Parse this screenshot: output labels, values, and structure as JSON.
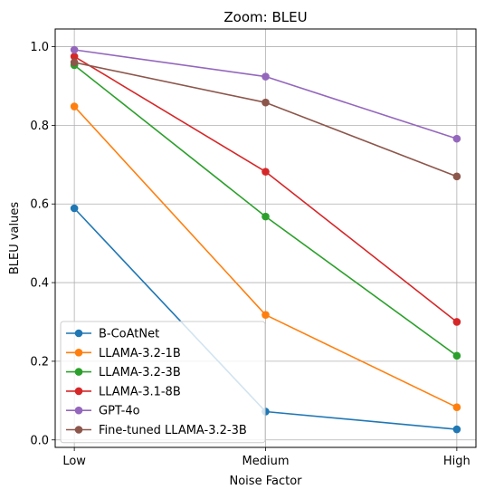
{
  "chart_data": {
    "type": "line",
    "title": "Zoom: BLEU",
    "xlabel": "Noise Factor",
    "ylabel": "BLEU values",
    "categories": [
      "Low",
      "Medium",
      "High"
    ],
    "ylim": [
      -0.019,
      1.045
    ],
    "yticks": [
      0.0,
      0.2,
      0.4,
      0.6,
      0.8,
      1.0
    ],
    "ytick_labels": [
      "0.0",
      "0.2",
      "0.4",
      "0.6",
      "0.8",
      "1.0"
    ],
    "grid": true,
    "legend_position": "lower-left",
    "marker": "circle",
    "series": [
      {
        "name": "B-CoAtNet",
        "color": "#1f77b4",
        "values": [
          0.589,
          0.072,
          0.027
        ]
      },
      {
        "name": "LLAMA-3.2-1B",
        "color": "#ff7f0e",
        "values": [
          0.848,
          0.318,
          0.083
        ]
      },
      {
        "name": "LLAMA-3.2-3B",
        "color": "#2ca02c",
        "values": [
          0.953,
          0.568,
          0.214
        ]
      },
      {
        "name": "LLAMA-3.1-8B",
        "color": "#d62728",
        "values": [
          0.975,
          0.682,
          0.3
        ]
      },
      {
        "name": "GPT-4o",
        "color": "#9467bd",
        "values": [
          0.992,
          0.924,
          0.766
        ]
      },
      {
        "name": "Fine-tuned LLAMA-3.2-3B",
        "color": "#8c564b",
        "values": [
          0.96,
          0.858,
          0.67
        ]
      }
    ]
  }
}
